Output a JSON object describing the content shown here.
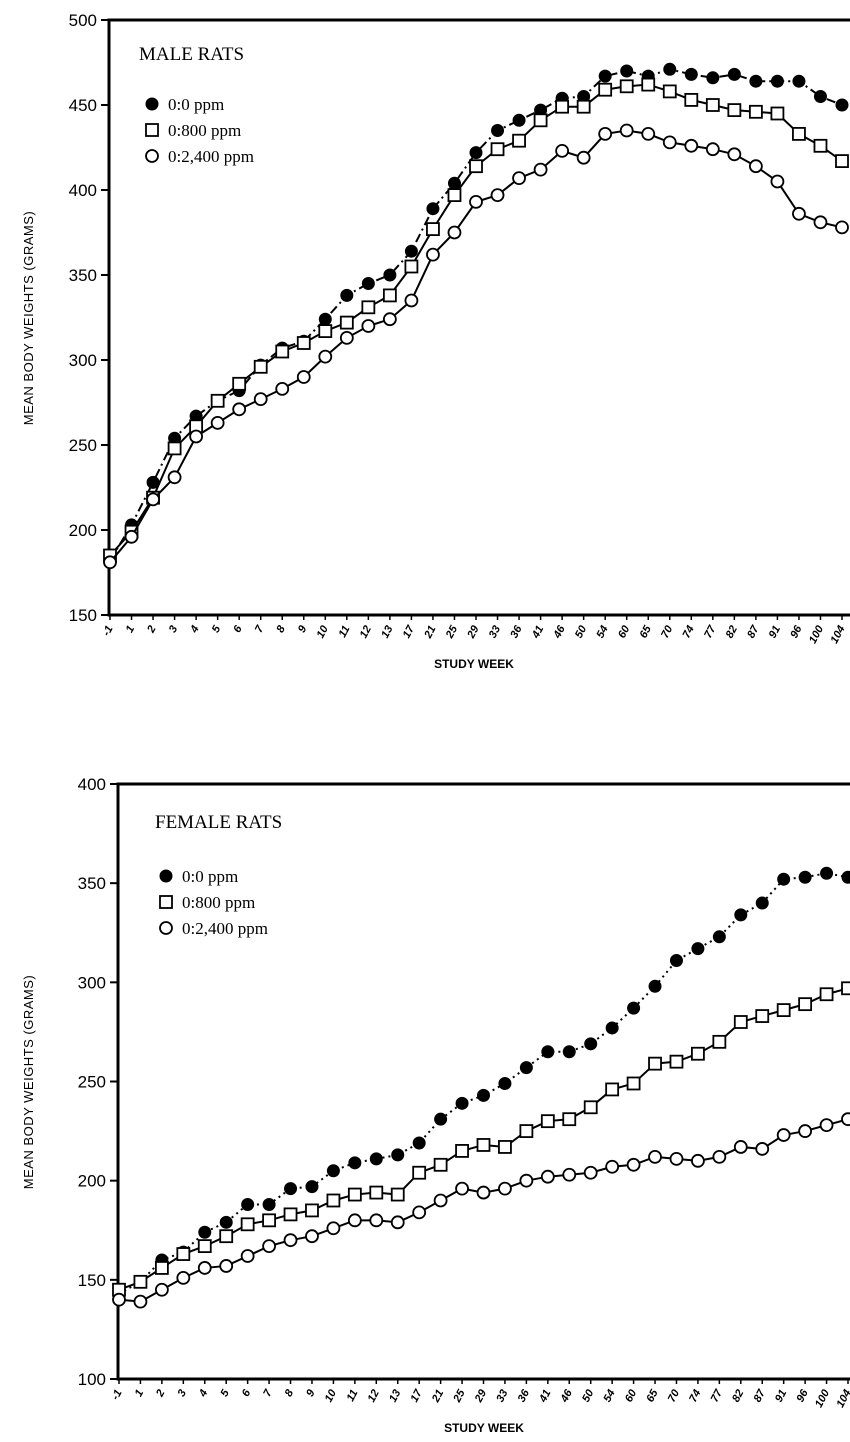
{
  "chart_data": [
    {
      "type": "line",
      "title": "MALE RATS",
      "xlabel": "STUDY WEEK",
      "ylabel": "MEAN BODY WEIGHTS (GRAMS)",
      "ylim": [
        150,
        500
      ],
      "yticks": [
        150,
        200,
        250,
        300,
        350,
        400,
        450,
        500
      ],
      "categories": [
        "-1",
        "1",
        "2",
        "3",
        "4",
        "5",
        "6",
        "7",
        "8",
        "9",
        "10",
        "11",
        "12",
        "13",
        "17",
        "21",
        "25",
        "29",
        "33",
        "36",
        "41",
        "46",
        "50",
        "54",
        "60",
        "65",
        "70",
        "74",
        "77",
        "82",
        "87",
        "91",
        "96",
        "100",
        "104"
      ],
      "series": [
        {
          "name": "0:0 ppm",
          "marker": "filled-circle",
          "line": "dash-dot",
          "values": [
            182,
            203,
            228,
            254,
            267,
            276,
            282,
            297,
            307,
            311,
            324,
            338,
            345,
            350,
            364,
            389,
            404,
            422,
            435,
            441,
            447,
            454,
            455,
            467,
            470,
            467,
            471,
            468,
            466,
            468,
            464,
            464,
            464,
            455,
            450
          ]
        },
        {
          "name": "0:800 ppm",
          "marker": "open-square",
          "line": "solid",
          "values": [
            185,
            199,
            219,
            248,
            261,
            276,
            286,
            296,
            305,
            310,
            317,
            322,
            331,
            338,
            355,
            377,
            397,
            414,
            424,
            429,
            441,
            449,
            449,
            459,
            461,
            462,
            458,
            453,
            450,
            447,
            446,
            445,
            433,
            426,
            417
          ]
        },
        {
          "name": "0:2,400 ppm",
          "marker": "open-circle",
          "line": "solid",
          "values": [
            181,
            196,
            218,
            231,
            255,
            263,
            271,
            277,
            283,
            290,
            302,
            313,
            320,
            324,
            335,
            362,
            375,
            393,
            397,
            407,
            412,
            423,
            419,
            433,
            435,
            433,
            428,
            426,
            424,
            421,
            414,
            405,
            386,
            381,
            378
          ]
        }
      ]
    },
    {
      "type": "line",
      "title": "FEMALE RATS",
      "xlabel": "STUDY WEEK",
      "ylabel": "MEAN BODY WEIGHTS (GRAMS)",
      "ylim": [
        100,
        400
      ],
      "yticks": [
        100,
        150,
        200,
        250,
        300,
        350,
        400
      ],
      "categories": [
        "-1",
        "1",
        "2",
        "3",
        "4",
        "5",
        "6",
        "7",
        "8",
        "9",
        "10",
        "11",
        "12",
        "13",
        "17",
        "21",
        "25",
        "29",
        "33",
        "36",
        "41",
        "46",
        "50",
        "54",
        "60",
        "65",
        "70",
        "74",
        "77",
        "82",
        "87",
        "91",
        "96",
        "100",
        "104"
      ],
      "series": [
        {
          "name": "0:0 ppm",
          "marker": "filled-circle",
          "line": "dotted",
          "values": [
            143,
            149,
            160,
            164,
            174,
            179,
            188,
            188,
            196,
            197,
            205,
            209,
            211,
            213,
            219,
            231,
            239,
            243,
            249,
            257,
            265,
            265,
            269,
            277,
            287,
            298,
            311,
            317,
            323,
            334,
            340,
            352,
            353,
            355,
            353
          ]
        },
        {
          "name": "0:800 ppm",
          "marker": "open-square",
          "line": "solid",
          "values": [
            145,
            149,
            156,
            163,
            167,
            172,
            178,
            180,
            183,
            185,
            190,
            193,
            194,
            193,
            204,
            208,
            215,
            218,
            217,
            225,
            230,
            231,
            237,
            246,
            249,
            259,
            260,
            264,
            270,
            280,
            283,
            286,
            289,
            294,
            297
          ]
        },
        {
          "name": "0:2,400 ppm",
          "marker": "open-circle",
          "line": "solid",
          "values": [
            140,
            139,
            145,
            151,
            156,
            157,
            162,
            167,
            170,
            172,
            176,
            180,
            180,
            179,
            184,
            190,
            196,
            194,
            196,
            200,
            202,
            203,
            204,
            207,
            208,
            212,
            211,
            210,
            212,
            217,
            216,
            223,
            225,
            228,
            231
          ]
        }
      ]
    }
  ]
}
